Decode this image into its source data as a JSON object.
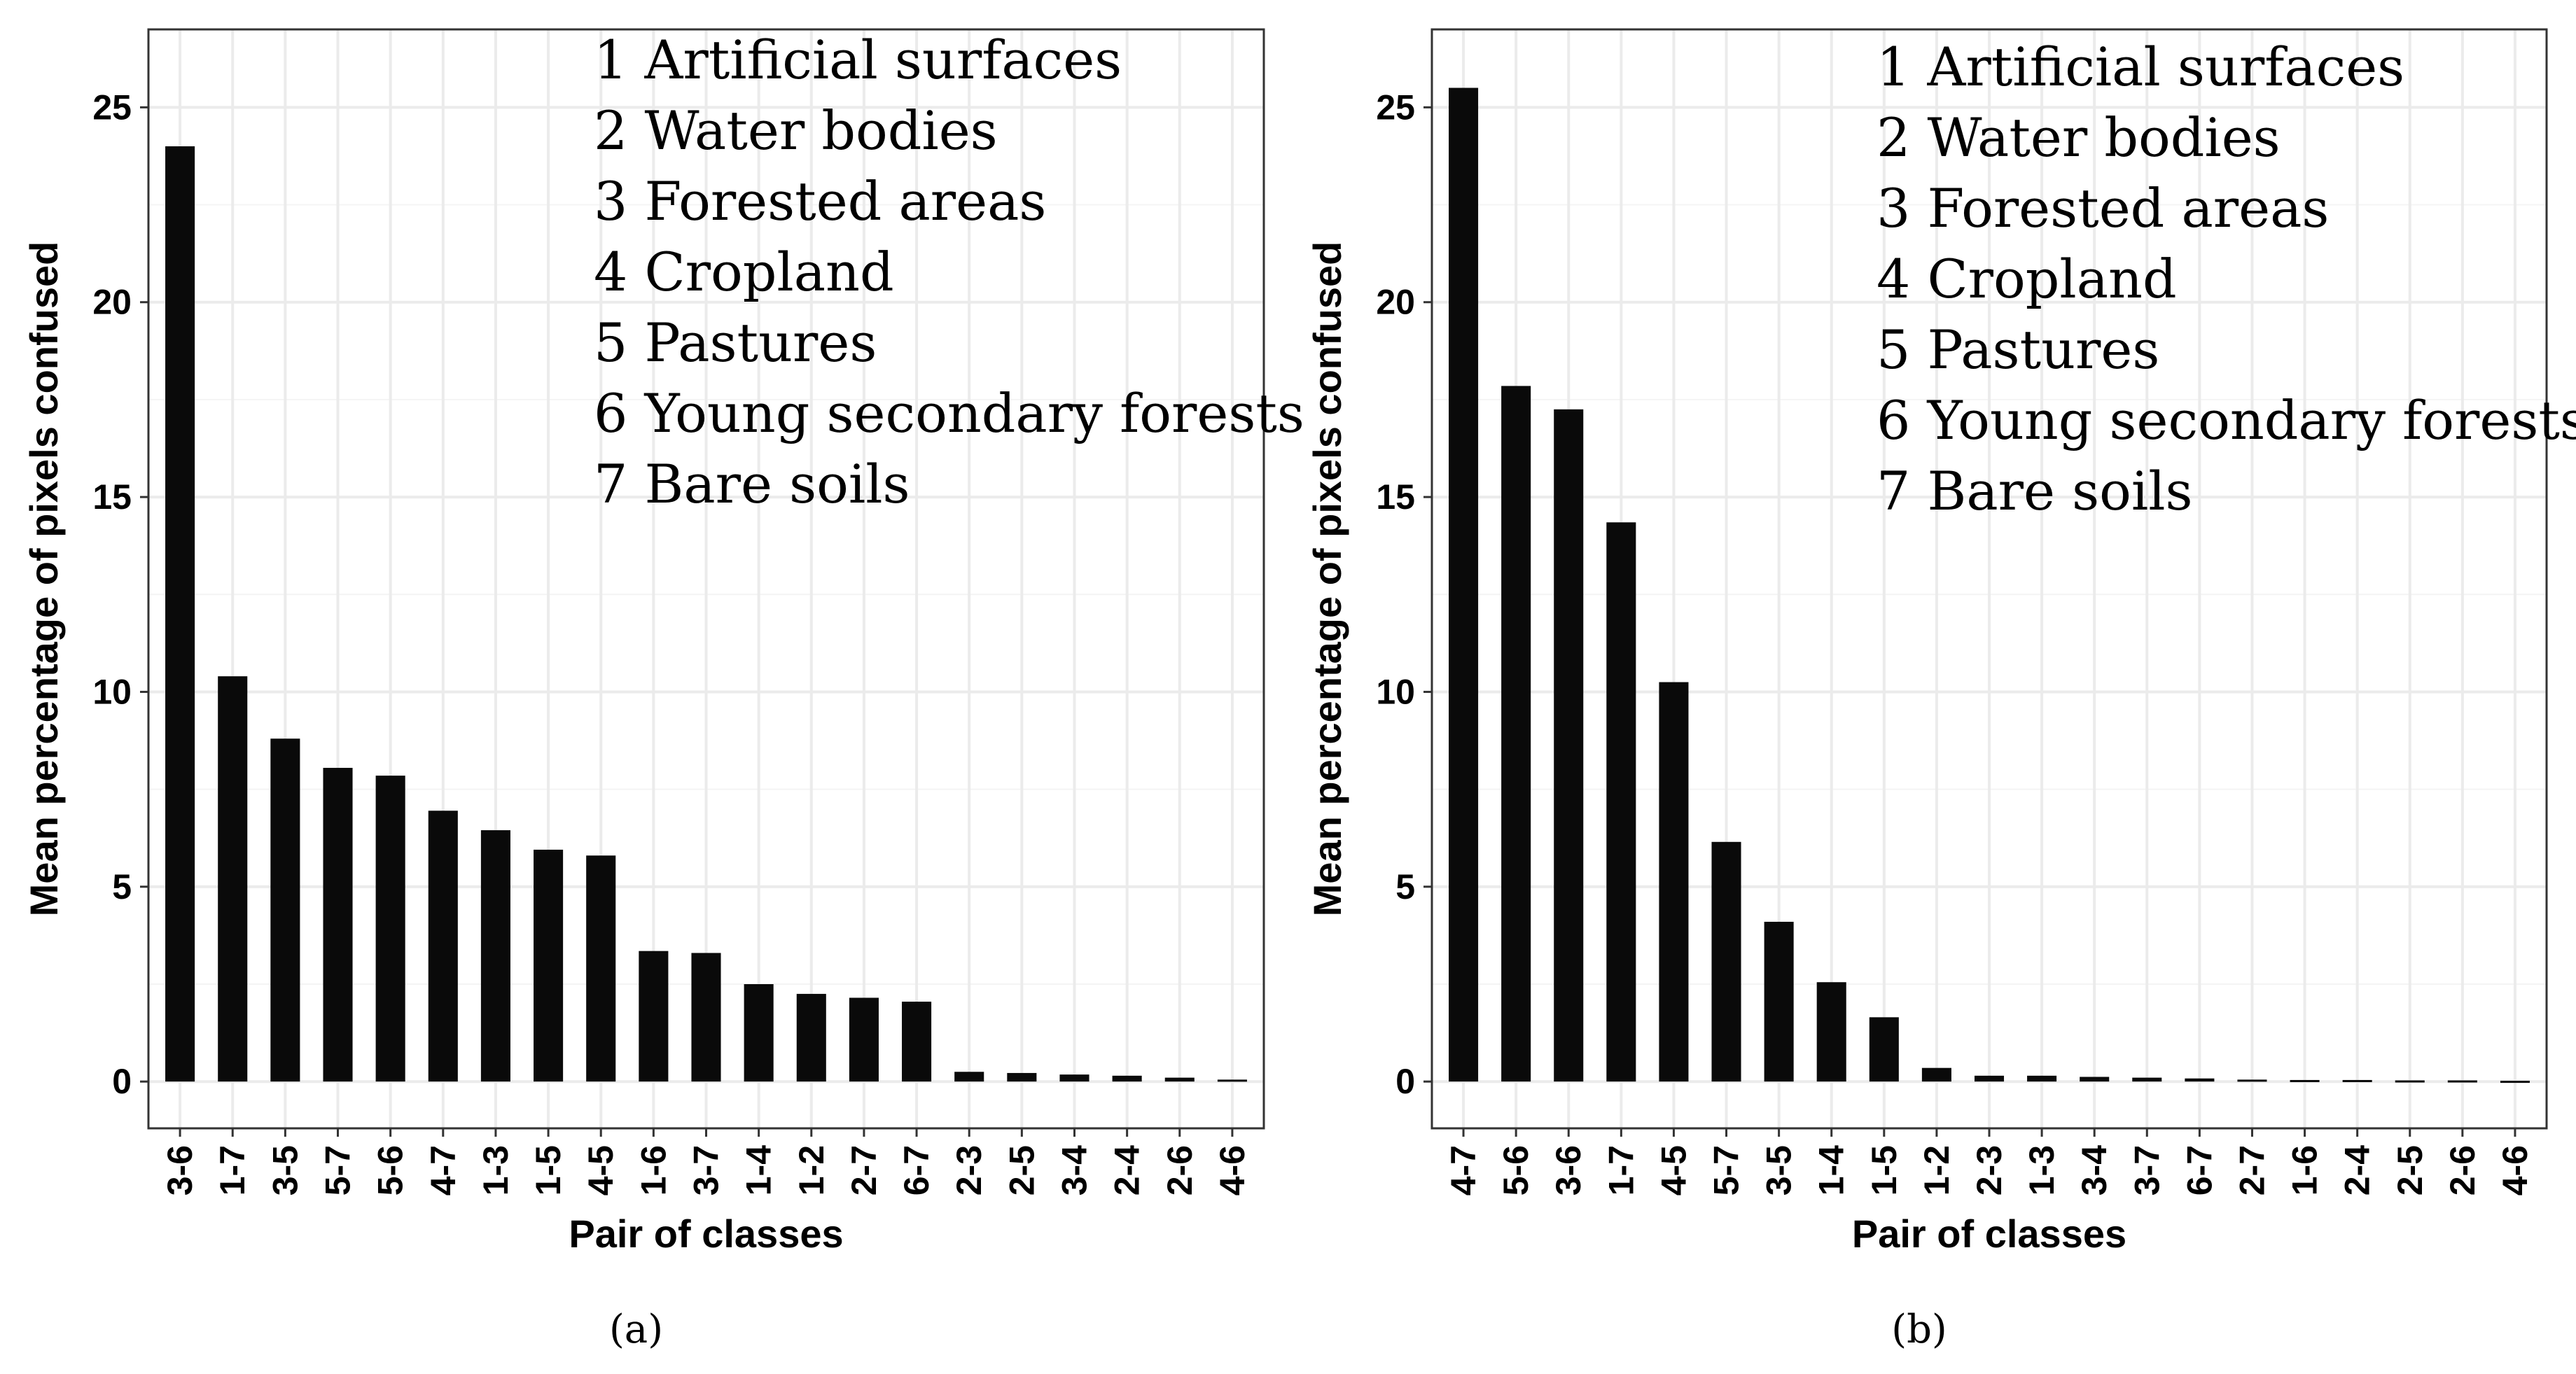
{
  "chart_data": [
    {
      "type": "bar",
      "caption": "(a)",
      "xlabel": "Pair of classes",
      "ylabel": "Mean percentage of pixels confused",
      "ylim": [
        -1.2,
        27
      ],
      "yticks": [
        "0",
        "5",
        "10",
        "15",
        "20",
        "25"
      ],
      "categories": [
        "3-6",
        "1-7",
        "3-5",
        "5-7",
        "5-6",
        "4-7",
        "1-3",
        "1-5",
        "4-5",
        "1-6",
        "3-7",
        "1-4",
        "1-2",
        "2-7",
        "6-7",
        "2-3",
        "2-5",
        "3-4",
        "2-4",
        "2-6",
        "4-6"
      ],
      "values": [
        24.0,
        10.4,
        8.8,
        8.05,
        7.85,
        6.95,
        6.45,
        5.95,
        5.8,
        3.35,
        3.3,
        2.5,
        2.25,
        2.15,
        2.05,
        0.25,
        0.22,
        0.18,
        0.15,
        0.1,
        0.05
      ],
      "legend": [
        "1 Artificial surfaces",
        "2 Water bodies",
        "3 Forested areas",
        "4 Cropland",
        "5 Pastures",
        "6 Young secondary forests",
        "7 Bare soils"
      ],
      "grid": true
    },
    {
      "type": "bar",
      "caption": "(b)",
      "xlabel": "Pair of classes",
      "ylabel": "Mean percentage of pixels confused",
      "ylim": [
        -1.2,
        27
      ],
      "yticks": [
        "0",
        "5",
        "10",
        "15",
        "20",
        "25"
      ],
      "categories": [
        "4-7",
        "5-6",
        "3-6",
        "1-7",
        "4-5",
        "5-7",
        "3-5",
        "1-4",
        "1-5",
        "1-2",
        "2-3",
        "1-3",
        "3-4",
        "3-7",
        "6-7",
        "2-7",
        "1-6",
        "2-4",
        "2-5",
        "2-6",
        "4-6"
      ],
      "values": [
        25.5,
        17.85,
        17.25,
        14.35,
        10.25,
        6.15,
        4.1,
        2.55,
        1.65,
        0.35,
        0.15,
        0.15,
        0.12,
        0.1,
        0.08,
        0.05,
        0.04,
        0.04,
        0.03,
        0.03,
        0.02
      ],
      "legend": [
        "1 Artificial surfaces",
        "2 Water bodies",
        "3 Forested areas",
        "4 Cropland",
        "5 Pastures",
        "6 Young secondary forests",
        "7 Bare soils"
      ],
      "grid": true
    }
  ]
}
